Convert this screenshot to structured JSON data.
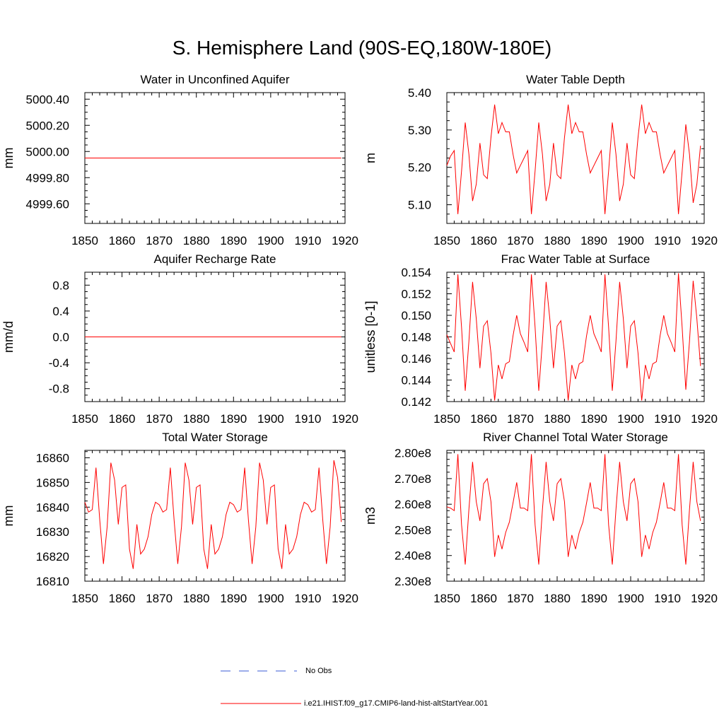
{
  "title": "S. Hemisphere Land (90S-EQ,180W-180E)",
  "colors": {
    "model": "#ff0000",
    "obs": "#3b5bd6",
    "axis": "#000000"
  },
  "legend": {
    "obs_label": "No Obs",
    "model_label": "i.e21.IHIST.f09_g17.CMIP6-land-hist-altStartYear.001"
  },
  "chart_data": [
    {
      "type": "line",
      "title": "Water in Unconfined Aquifer",
      "ylabel": "mm",
      "xlim": [
        1850,
        1920
      ],
      "ylim": [
        4999.45,
        5000.45
      ],
      "xticks": [
        1850,
        1860,
        1870,
        1880,
        1890,
        1900,
        1910,
        1920
      ],
      "yticks": [
        4999.6,
        4999.8,
        5000.0,
        5000.2,
        5000.4
      ],
      "ytick_labels": [
        "4999.60",
        "4999.80",
        "5000.00",
        "5000.20",
        "5000.40"
      ],
      "series": [
        {
          "values": [
            4999.95,
            4999.95,
            4999.95,
            4999.95,
            4999.95,
            4999.95,
            4999.95,
            4999.95,
            4999.95,
            4999.95,
            4999.95,
            4999.95,
            4999.95,
            4999.95,
            4999.95,
            4999.95,
            4999.95,
            4999.95,
            4999.95,
            4999.95,
            4999.95,
            4999.95,
            4999.95,
            4999.95,
            4999.95,
            4999.95,
            4999.95,
            4999.95,
            4999.95,
            4999.95,
            4999.95,
            4999.95,
            4999.95,
            4999.95,
            4999.95,
            4999.95,
            4999.95,
            4999.95,
            4999.95,
            4999.95,
            4999.95,
            4999.95,
            4999.95,
            4999.95,
            4999.95,
            4999.95,
            4999.95,
            4999.95,
            4999.95,
            4999.95,
            4999.95,
            4999.95,
            4999.95,
            4999.95,
            4999.95,
            4999.95,
            4999.95,
            4999.95,
            4999.95,
            4999.95,
            4999.95,
            4999.95,
            4999.95,
            4999.95,
            4999.95,
            4999.95,
            4999.95,
            4999.95,
            4999.95,
            4999.95
          ]
        }
      ]
    },
    {
      "type": "line",
      "title": "Water Table Depth",
      "ylabel": "m",
      "xlim": [
        1850,
        1920
      ],
      "ylim": [
        5.05,
        5.4
      ],
      "xticks": [
        1850,
        1860,
        1870,
        1880,
        1890,
        1900,
        1910,
        1920
      ],
      "yticks": [
        5.1,
        5.2,
        5.3,
        5.4
      ],
      "ytick_labels": [
        "5.10",
        "5.20",
        "5.30",
        "5.40"
      ],
      "series": [
        {
          "values": [
            5.205,
            5.23,
            5.245,
            5.075,
            5.19,
            5.32,
            5.235,
            5.11,
            5.155,
            5.265,
            5.18,
            5.17,
            5.28,
            5.368,
            5.29,
            5.32,
            5.295,
            5.295,
            5.235,
            5.185,
            5.205,
            5.225,
            5.245,
            5.075,
            5.19,
            5.32,
            5.235,
            5.11,
            5.155,
            5.265,
            5.18,
            5.17,
            5.28,
            5.368,
            5.29,
            5.32,
            5.295,
            5.295,
            5.235,
            5.185,
            5.205,
            5.225,
            5.245,
            5.075,
            5.19,
            5.32,
            5.235,
            5.11,
            5.155,
            5.265,
            5.18,
            5.17,
            5.28,
            5.368,
            5.29,
            5.32,
            5.295,
            5.295,
            5.235,
            5.185,
            5.205,
            5.225,
            5.245,
            5.075,
            5.19,
            5.315,
            5.235,
            5.105,
            5.155,
            5.258
          ]
        }
      ]
    },
    {
      "type": "line",
      "title": "Aquifer Recharge Rate",
      "ylabel": "mm/d",
      "xlim": [
        1850,
        1920
      ],
      "ylim": [
        -1.0,
        1.0
      ],
      "xticks": [
        1850,
        1860,
        1870,
        1880,
        1890,
        1900,
        1910,
        1920
      ],
      "yticks": [
        -0.8,
        -0.4,
        0.0,
        0.4,
        0.8
      ],
      "ytick_labels": [
        "-0.8",
        "-0.4",
        "0.0",
        "0.4",
        "0.8"
      ],
      "series": [
        {
          "values": [
            0,
            0,
            0,
            0,
            0,
            0,
            0,
            0,
            0,
            0,
            0,
            0,
            0,
            0,
            0,
            0,
            0,
            0,
            0,
            0,
            0,
            0,
            0,
            0,
            0,
            0,
            0,
            0,
            0,
            0,
            0,
            0,
            0,
            0,
            0,
            0,
            0,
            0,
            0,
            0,
            0,
            0,
            0,
            0,
            0,
            0,
            0,
            0,
            0,
            0,
            0,
            0,
            0,
            0,
            0,
            0,
            0,
            0,
            0,
            0,
            0,
            0,
            0,
            0,
            0,
            0,
            0,
            0,
            0,
            0
          ]
        }
      ]
    },
    {
      "type": "line",
      "title": "Frac Water Table at Surface",
      "ylabel": "unitless [0-1]",
      "xlim": [
        1850,
        1920
      ],
      "ylim": [
        0.142,
        0.154
      ],
      "xticks": [
        1850,
        1860,
        1870,
        1880,
        1890,
        1900,
        1910,
        1920
      ],
      "yticks": [
        0.142,
        0.144,
        0.146,
        0.148,
        0.15,
        0.152,
        0.154
      ],
      "ytick_labels": [
        "0.142",
        "0.144",
        "0.146",
        "0.148",
        "0.150",
        "0.152",
        "0.154"
      ],
      "series": [
        {
          "values": [
            0.1482,
            0.1474,
            0.1466,
            0.1538,
            0.1489,
            0.143,
            0.1476,
            0.1531,
            0.1497,
            0.1451,
            0.149,
            0.1495,
            0.1465,
            0.1421,
            0.1454,
            0.1441,
            0.1455,
            0.1457,
            0.1481,
            0.15,
            0.1483,
            0.1475,
            0.1466,
            0.1538,
            0.1489,
            0.143,
            0.1476,
            0.1531,
            0.1497,
            0.1451,
            0.149,
            0.1495,
            0.1465,
            0.1421,
            0.1454,
            0.1441,
            0.1455,
            0.1457,
            0.1481,
            0.15,
            0.1483,
            0.1475,
            0.1466,
            0.1538,
            0.1489,
            0.143,
            0.1476,
            0.1531,
            0.1497,
            0.1451,
            0.149,
            0.1495,
            0.1465,
            0.1421,
            0.1454,
            0.1441,
            0.1455,
            0.1457,
            0.1481,
            0.15,
            0.1483,
            0.1475,
            0.1466,
            0.1539,
            0.1489,
            0.1431,
            0.1476,
            0.1532,
            0.1497,
            0.1453
          ]
        }
      ]
    },
    {
      "type": "line",
      "title": "Total Water Storage",
      "ylabel": "mm",
      "xlim": [
        1850,
        1920
      ],
      "ylim": [
        16810,
        16863
      ],
      "xticks": [
        1850,
        1860,
        1870,
        1880,
        1890,
        1900,
        1910,
        1920
      ],
      "yticks": [
        16810,
        16820,
        16830,
        16840,
        16850,
        16860
      ],
      "ytick_labels": [
        "16810",
        "16820",
        "16830",
        "16840",
        "16850",
        "16860"
      ],
      "series": [
        {
          "values": [
            16842,
            16838,
            16839,
            16856,
            16835,
            16817,
            16832,
            16858,
            16851,
            16833,
            16848,
            16849,
            16823,
            16815,
            16833,
            16821,
            16823,
            16828,
            16837,
            16842,
            16841,
            16838,
            16839,
            16856,
            16835,
            16817,
            16832,
            16858,
            16851,
            16833,
            16848,
            16849,
            16823,
            16815,
            16833,
            16821,
            16823,
            16828,
            16837,
            16842,
            16841,
            16838,
            16839,
            16856,
            16835,
            16817,
            16832,
            16858,
            16851,
            16833,
            16848,
            16849,
            16823,
            16815,
            16833,
            16821,
            16823,
            16828,
            16837,
            16842,
            16841,
            16838,
            16839,
            16856,
            16835,
            16817,
            16832,
            16859,
            16852,
            16834
          ]
        }
      ]
    },
    {
      "type": "line",
      "title": "River Channel Total Water Storage",
      "ylabel": "m3",
      "xlim": [
        1850,
        1920
      ],
      "ylim": [
        230000000.0,
        281000000.0
      ],
      "xticks": [
        1850,
        1860,
        1870,
        1880,
        1890,
        1900,
        1910,
        1920
      ],
      "yticks": [
        230000000.0,
        240000000.0,
        250000000.0,
        260000000.0,
        270000000.0,
        280000000.0
      ],
      "ytick_labels": [
        "2.30e8",
        "2.40e8",
        "2.50e8",
        "2.60e8",
        "2.70e8",
        "2.80e8"
      ],
      "series": [
        {
          "values": [
            259000000,
            258500000,
            257500000,
            279500000,
            252000000,
            236500000,
            258000000,
            276500000,
            261000000,
            253500000,
            268000000,
            270000000,
            261000000,
            239500000,
            248000000,
            242500000,
            249000000,
            253000000,
            260500000,
            268500000,
            258500000,
            258500000,
            257500000,
            279500000,
            252000000,
            236500000,
            258000000,
            276500000,
            261000000,
            253500000,
            268000000,
            270000000,
            261000000,
            239500000,
            248000000,
            242500000,
            249000000,
            253000000,
            260500000,
            268500000,
            258500000,
            258500000,
            257500000,
            279500000,
            252000000,
            236500000,
            258000000,
            276500000,
            261000000,
            253500000,
            268000000,
            270000000,
            261000000,
            239500000,
            248000000,
            242500000,
            249000000,
            253000000,
            260500000,
            268500000,
            258500000,
            258500000,
            257500000,
            279500000,
            252000000,
            236500000,
            258000000,
            276500000,
            261000000,
            253500000
          ]
        }
      ]
    }
  ]
}
